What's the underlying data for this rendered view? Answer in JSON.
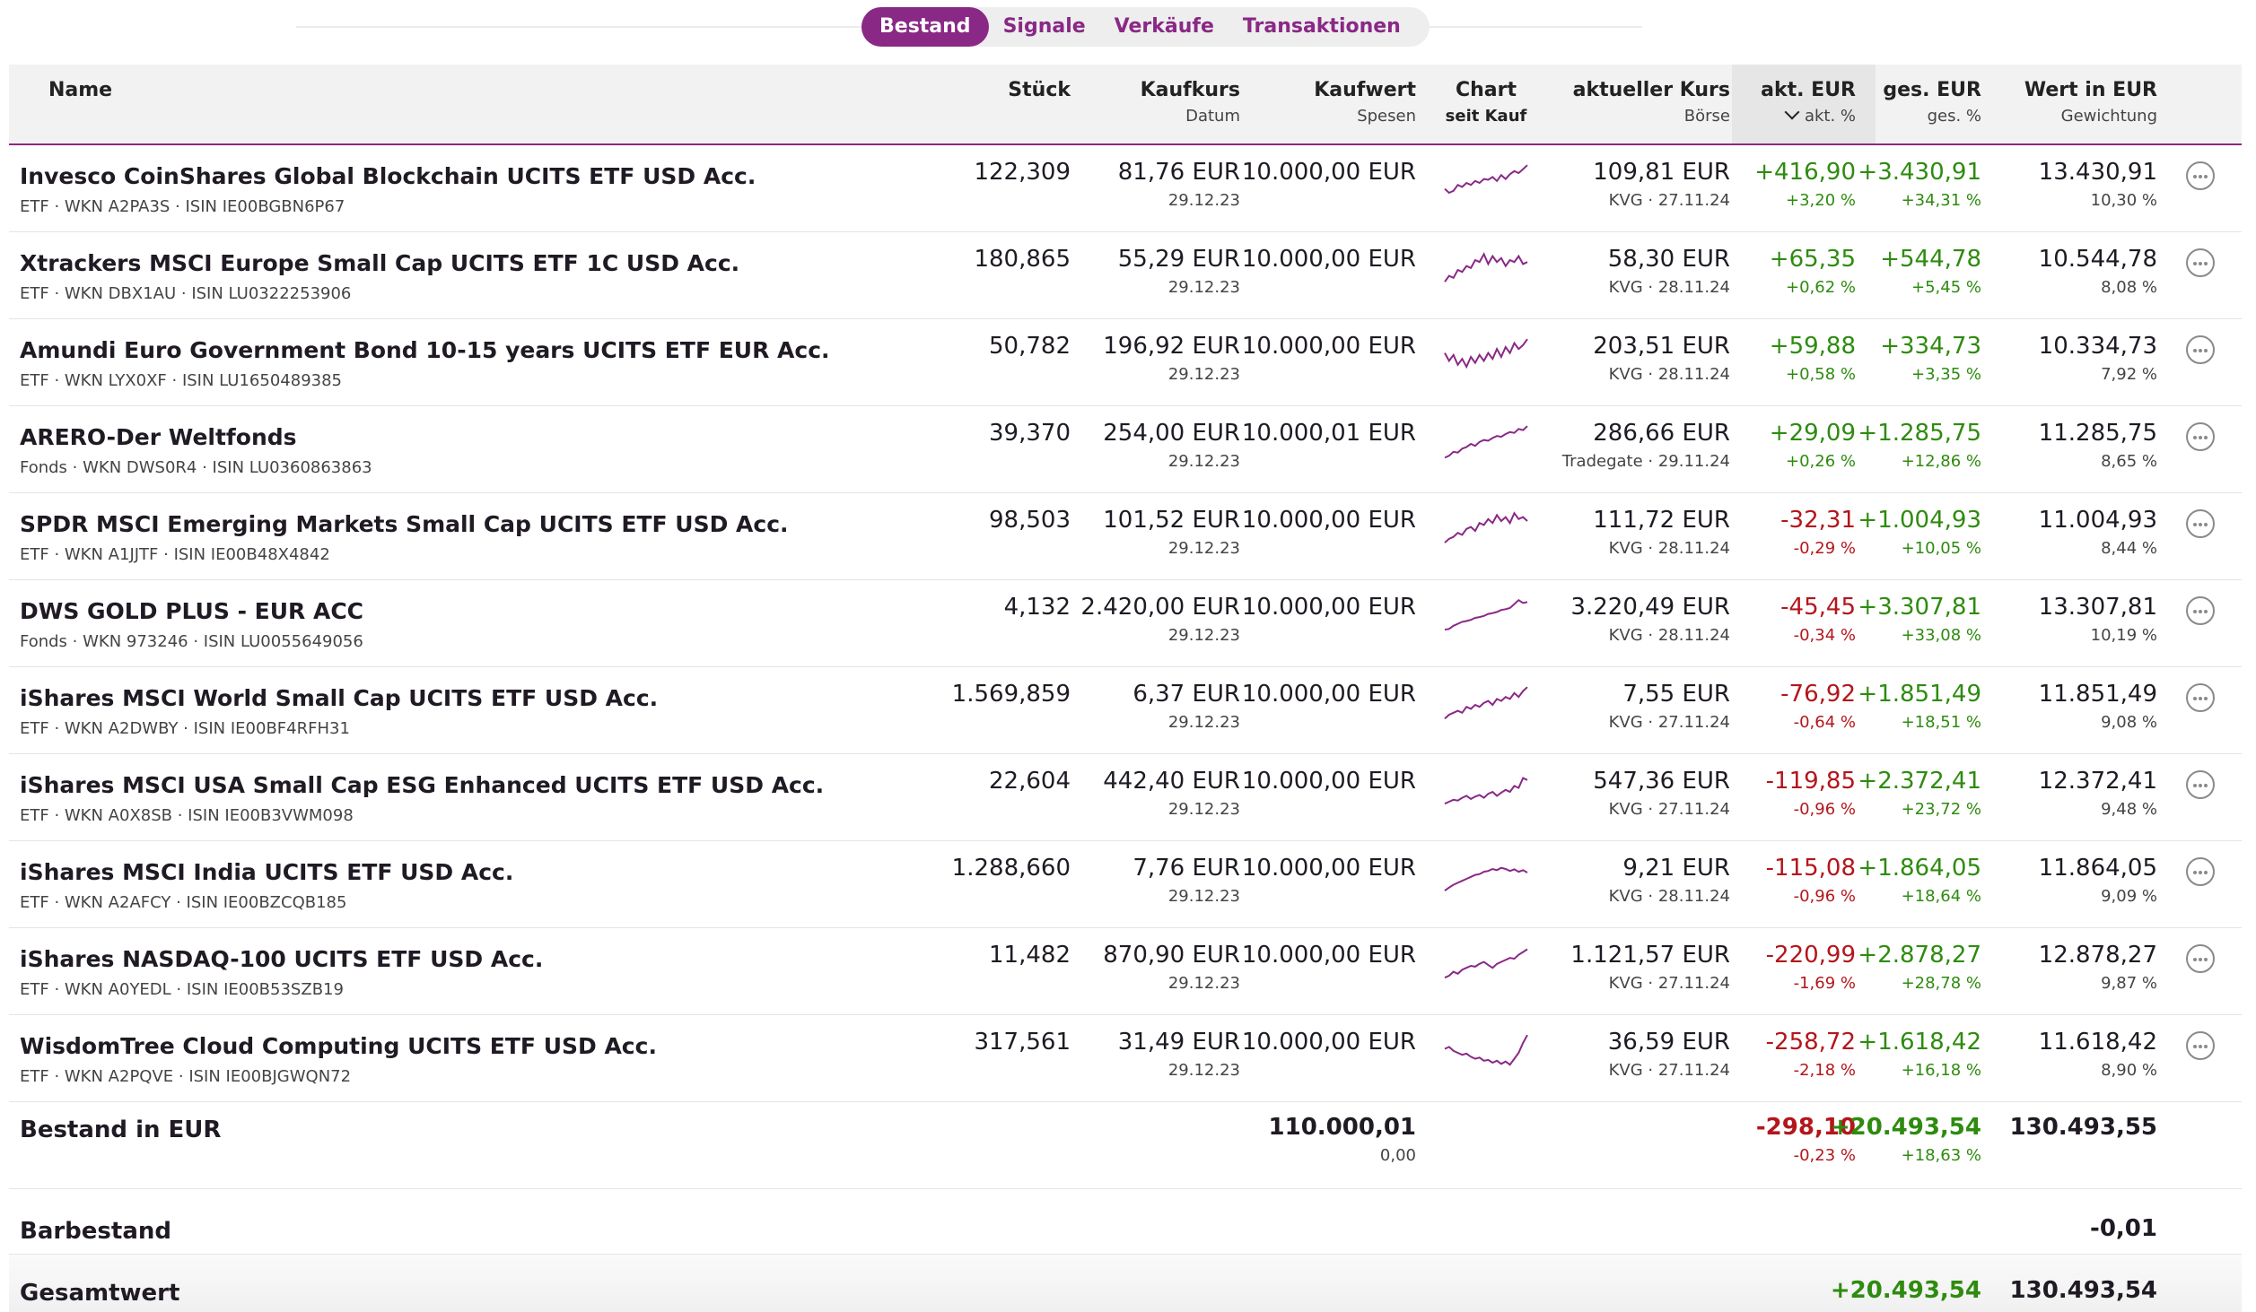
{
  "tabs": [
    {
      "label": "Bestand",
      "active": true
    },
    {
      "label": "Signale",
      "active": false
    },
    {
      "label": "Verkäufe",
      "active": false
    },
    {
      "label": "Transaktionen",
      "active": false
    }
  ],
  "header": {
    "name": "Name",
    "stueck": "Stück",
    "kaufkurs": "Kaufkurs",
    "datum": "Datum",
    "kaufwert": "Kaufwert",
    "spesen": "Spesen",
    "chart": "Chart",
    "seit_kauf": "seit Kauf",
    "kurs": "aktueller Kurs",
    "boerse": "Börse",
    "akt_eur": "akt. EUR",
    "akt_pct": "akt. %",
    "ges_eur": "ges. EUR",
    "ges_pct": "ges. %",
    "wert": "Wert in EUR",
    "gewichtung": "Gewichtung"
  },
  "positions": [
    {
      "name": "Invesco CoinShares Global Blockchain UCITS ETF USD Acc.",
      "sub": "ETF · WKN A2PA3S · ISIN IE00BGBN6P67",
      "stueck": "122,309",
      "kaufkurs": "81,76 EUR",
      "datum": "29.12.23",
      "kaufwert": "10.000,00 EUR",
      "kurs": "109,81 EUR",
      "boerse": "KVG · 27.11.24",
      "akt_eur": "+416,90",
      "akt_pct": "+3,20 %",
      "ges_eur": "+3.430,91",
      "ges_pct": "+34,31 %",
      "wert": "13.430,91",
      "gew": "10,30 %",
      "akt_sign": "pos",
      "ges_sign": "pos",
      "spark": [
        0.35,
        0.25,
        0.3,
        0.45,
        0.4,
        0.5,
        0.45,
        0.55,
        0.5,
        0.6,
        0.58,
        0.65,
        0.55,
        0.7,
        0.6,
        0.72,
        0.8,
        0.75,
        0.85,
        0.95
      ]
    },
    {
      "name": "Xtrackers MSCI Europe Small Cap UCITS ETF 1C USD Acc.",
      "sub": "ETF · WKN DBX1AU · ISIN LU0322253906",
      "stueck": "180,865",
      "kaufkurs": "55,29 EUR",
      "datum": "29.12.23",
      "kaufwert": "10.000,00 EUR",
      "kurs": "58,30 EUR",
      "boerse": "KVG · 28.11.24",
      "akt_eur": "+65,35",
      "akt_pct": "+0,62 %",
      "ges_eur": "+544,78",
      "ges_pct": "+5,45 %",
      "wert": "10.544,78",
      "gew": "8,08 %",
      "akt_sign": "pos",
      "ges_sign": "pos",
      "spark": [
        0.2,
        0.35,
        0.3,
        0.5,
        0.45,
        0.6,
        0.55,
        0.75,
        0.7,
        0.9,
        0.65,
        0.85,
        0.7,
        0.8,
        0.6,
        0.75,
        0.7,
        0.85,
        0.65,
        0.7
      ]
    },
    {
      "name": "Amundi Euro Government Bond 10-15 years UCITS ETF EUR Acc.",
      "sub": "ETF · WKN LYX0XF · ISIN LU1650489385",
      "stueck": "50,782",
      "kaufkurs": "196,92 EUR",
      "datum": "29.12.23",
      "kaufwert": "10.000,00 EUR",
      "kurs": "203,51 EUR",
      "boerse": "KVG · 28.11.24",
      "akt_eur": "+59,88",
      "akt_pct": "+0,58 %",
      "ges_eur": "+334,73",
      "ges_pct": "+3,35 %",
      "wert": "10.334,73",
      "gew": "7,92 %",
      "akt_sign": "pos",
      "ges_sign": "pos",
      "spark": [
        0.6,
        0.4,
        0.55,
        0.3,
        0.45,
        0.25,
        0.5,
        0.35,
        0.55,
        0.4,
        0.6,
        0.45,
        0.7,
        0.5,
        0.75,
        0.6,
        0.85,
        0.7,
        0.8,
        0.95
      ]
    },
    {
      "name": "ARERO-Der Weltfonds",
      "sub": "Fonds · WKN DWS0R4 · ISIN LU0360863863",
      "stueck": "39,370",
      "kaufkurs": "254,00 EUR",
      "datum": "29.12.23",
      "kaufwert": "10.000,01 EUR",
      "kurs": "286,66 EUR",
      "boerse": "Tradegate · 29.11.24",
      "akt_eur": "+29,09",
      "akt_pct": "+0,26 %",
      "ges_eur": "+1.285,75",
      "ges_pct": "+12,86 %",
      "wert": "11.285,75",
      "gew": "8,65 %",
      "akt_sign": "pos",
      "ges_sign": "pos",
      "spark": [
        0.15,
        0.2,
        0.3,
        0.28,
        0.38,
        0.42,
        0.5,
        0.45,
        0.55,
        0.6,
        0.58,
        0.65,
        0.7,
        0.68,
        0.75,
        0.8,
        0.78,
        0.88,
        0.85,
        0.95
      ]
    },
    {
      "name": "SPDR MSCI Emerging Markets Small Cap UCITS ETF USD Acc.",
      "sub": "ETF · WKN A1JJTF · ISIN IE00B48X4842",
      "stueck": "98,503",
      "kaufkurs": "101,52 EUR",
      "datum": "29.12.23",
      "kaufwert": "10.000,00 EUR",
      "kurs": "111,72 EUR",
      "boerse": "KVG · 28.11.24",
      "akt_eur": "-32,31",
      "akt_pct": "-0,29 %",
      "ges_eur": "+1.004,93",
      "ges_pct": "+10,05 %",
      "wert": "11.004,93",
      "gew": "8,44 %",
      "akt_sign": "neg",
      "ges_sign": "pos",
      "spark": [
        0.2,
        0.3,
        0.35,
        0.45,
        0.4,
        0.55,
        0.6,
        0.5,
        0.7,
        0.65,
        0.8,
        0.7,
        0.9,
        0.75,
        0.85,
        0.7,
        0.95,
        0.8,
        0.85,
        0.75
      ]
    },
    {
      "name": "DWS GOLD PLUS - EUR ACC",
      "sub": "Fonds · WKN 973246 · ISIN LU0055649056",
      "stueck": "4,132",
      "kaufkurs": "2.420,00 EUR",
      "datum": "29.12.23",
      "kaufwert": "10.000,00 EUR",
      "kurs": "3.220,49 EUR",
      "boerse": "KVG · 28.11.24",
      "akt_eur": "-45,45",
      "akt_pct": "-0,34 %",
      "ges_eur": "+3.307,81",
      "ges_pct": "+33,08 %",
      "wert": "13.307,81",
      "gew": "10,19 %",
      "akt_sign": "neg",
      "ges_sign": "pos",
      "spark": [
        0.2,
        0.22,
        0.3,
        0.35,
        0.4,
        0.42,
        0.45,
        0.5,
        0.52,
        0.55,
        0.6,
        0.62,
        0.65,
        0.7,
        0.72,
        0.75,
        0.85,
        0.95,
        0.88,
        0.9
      ]
    },
    {
      "name": "iShares MSCI World Small Cap UCITS ETF USD Acc.",
      "sub": "ETF · WKN A2DWBY · ISIN IE00BF4RFH31",
      "stueck": "1.569,859",
      "kaufkurs": "6,37 EUR",
      "datum": "29.12.23",
      "kaufwert": "10.000,00 EUR",
      "kurs": "7,55 EUR",
      "boerse": "KVG · 27.11.24",
      "akt_eur": "-76,92",
      "akt_pct": "-0,64 %",
      "ges_eur": "+1.851,49",
      "ges_pct": "+18,51 %",
      "wert": "11.851,49",
      "gew": "9,08 %",
      "akt_sign": "neg",
      "ges_sign": "pos",
      "spark": [
        0.15,
        0.25,
        0.3,
        0.35,
        0.3,
        0.45,
        0.4,
        0.5,
        0.45,
        0.55,
        0.6,
        0.5,
        0.65,
        0.6,
        0.7,
        0.65,
        0.8,
        0.7,
        0.85,
        0.95
      ]
    },
    {
      "name": "iShares MSCI USA Small Cap ESG Enhanced UCITS ETF USD Acc.",
      "sub": "ETF · WKN A0X8SB · ISIN IE00B3VWM098",
      "stueck": "22,604",
      "kaufkurs": "442,40 EUR",
      "datum": "29.12.23",
      "kaufwert": "10.000,00 EUR",
      "kurs": "547,36 EUR",
      "boerse": "KVG · 27.11.24",
      "akt_eur": "-119,85",
      "akt_pct": "-0,96 %",
      "ges_eur": "+2.372,41",
      "ges_pct": "+23,72 %",
      "wert": "12.372,41",
      "gew": "9,48 %",
      "akt_sign": "neg",
      "ges_sign": "pos",
      "spark": [
        0.2,
        0.25,
        0.3,
        0.28,
        0.35,
        0.4,
        0.32,
        0.38,
        0.42,
        0.35,
        0.45,
        0.5,
        0.4,
        0.48,
        0.55,
        0.5,
        0.65,
        0.6,
        0.85,
        0.8
      ]
    },
    {
      "name": "iShares MSCI India UCITS ETF USD Acc.",
      "sub": "ETF · WKN A2AFCY · ISIN IE00BZCQB185",
      "stueck": "1.288,660",
      "kaufkurs": "7,76 EUR",
      "datum": "29.12.23",
      "kaufwert": "10.000,00 EUR",
      "kurs": "9,21 EUR",
      "boerse": "KVG · 28.11.24",
      "akt_eur": "-115,08",
      "akt_pct": "-0,96 %",
      "ges_eur": "+1.864,05",
      "ges_pct": "+18,64 %",
      "wert": "11.864,05",
      "gew": "9,09 %",
      "akt_sign": "neg",
      "ges_sign": "pos",
      "spark": [
        0.2,
        0.28,
        0.35,
        0.4,
        0.45,
        0.5,
        0.55,
        0.6,
        0.62,
        0.68,
        0.7,
        0.75,
        0.72,
        0.78,
        0.75,
        0.7,
        0.74,
        0.68,
        0.72,
        0.66
      ]
    },
    {
      "name": "iShares NASDAQ-100 UCITS ETF USD Acc.",
      "sub": "ETF · WKN A0YEDL · ISIN IE00B53SZB19",
      "stueck": "11,482",
      "kaufkurs": "870,90 EUR",
      "datum": "29.12.23",
      "kaufwert": "10.000,00 EUR",
      "kurs": "1.121,57 EUR",
      "boerse": "KVG · 27.11.24",
      "akt_eur": "-220,99",
      "akt_pct": "-1,69 %",
      "ges_eur": "+2.878,27",
      "ges_pct": "+28,78 %",
      "wert": "12.878,27",
      "gew": "9,87 %",
      "akt_sign": "neg",
      "ges_sign": "pos",
      "spark": [
        0.2,
        0.25,
        0.35,
        0.3,
        0.4,
        0.45,
        0.5,
        0.48,
        0.55,
        0.6,
        0.52,
        0.45,
        0.55,
        0.6,
        0.65,
        0.7,
        0.68,
        0.78,
        0.85,
        0.92
      ]
    },
    {
      "name": "WisdomTree Cloud Computing UCITS ETF USD Acc.",
      "sub": "ETF · WKN A2PQVE · ISIN IE00BJGWQN72",
      "stueck": "317,561",
      "kaufkurs": "31,49 EUR",
      "datum": "29.12.23",
      "kaufwert": "10.000,00 EUR",
      "kurs": "36,59 EUR",
      "boerse": "KVG · 27.11.24",
      "akt_eur": "-258,72",
      "akt_pct": "-2,18 %",
      "ges_eur": "+1.618,42",
      "ges_pct": "+16,18 %",
      "wert": "11.618,42",
      "gew": "8,90 %",
      "akt_sign": "neg",
      "ges_sign": "pos",
      "spark": [
        0.6,
        0.65,
        0.55,
        0.5,
        0.45,
        0.48,
        0.4,
        0.35,
        0.38,
        0.3,
        0.32,
        0.25,
        0.3,
        0.22,
        0.28,
        0.2,
        0.35,
        0.5,
        0.75,
        0.95
      ]
    }
  ],
  "summary": {
    "label": "Bestand in EUR",
    "kaufwert": "110.000,01",
    "spesen": "0,00",
    "akt_eur": "-298,10",
    "akt_pct": "-0,23 %",
    "ges_eur": "+20.493,54",
    "ges_pct": "+18,63 %",
    "wert": "130.493,55"
  },
  "barbestand": {
    "label": "Barbestand",
    "wert": "-0,01"
  },
  "gesamtwert": {
    "label": "Gesamtwert",
    "ges_eur": "+20.493,54",
    "wert": "130.493,54"
  },
  "colors": {
    "accent": "#8a2886",
    "positive": "#2e8b0f",
    "negative": "#b3161b"
  },
  "icons": {
    "more": "more-options-icon",
    "sort": "chevron-down-icon"
  }
}
